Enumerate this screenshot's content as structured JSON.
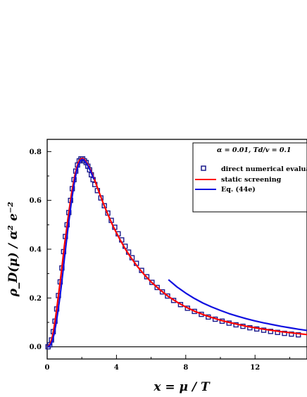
{
  "chart_data": {
    "type": "line",
    "xlabel": "x = μ / T",
    "ylabel": "ρ_D(μ) / α² e⁻²",
    "xlim": [
      0,
      15
    ],
    "ylim": [
      -0.05,
      0.85
    ],
    "x_ticks": [
      "0",
      "4",
      "8",
      "12"
    ],
    "y_ticks": [
      "0.0",
      "0.2",
      "0.4",
      "0.6",
      "0.8"
    ],
    "grid": false,
    "legend_position": "top-right",
    "legend_params": "α = 0.01,    Td/v = 0.1",
    "series": [
      {
        "name": "direct numerical evaluation",
        "style": "open-square-markers",
        "color": "#1a1a8c",
        "x": [
          0.05,
          0.15,
          0.25,
          0.35,
          0.45,
          0.55,
          0.65,
          0.75,
          0.85,
          0.95,
          1.05,
          1.15,
          1.25,
          1.35,
          1.45,
          1.55,
          1.65,
          1.75,
          1.85,
          1.95,
          2.05,
          2.15,
          2.25,
          2.35,
          2.45,
          2.55,
          2.65,
          2.75,
          2.9,
          3.1,
          3.3,
          3.5,
          3.7,
          3.9,
          4.1,
          4.3,
          4.5,
          4.7,
          4.9,
          5.15,
          5.45,
          5.75,
          6.05,
          6.35,
          6.65,
          6.95,
          7.3,
          7.7,
          8.1,
          8.5,
          8.9,
          9.3,
          9.7,
          10.1,
          10.5,
          10.9,
          11.3,
          11.7,
          12.1,
          12.5,
          12.9,
          13.3,
          13.7,
          14.1,
          14.5
        ],
        "y": [
          0.0,
          0.008,
          0.028,
          0.062,
          0.105,
          0.155,
          0.21,
          0.266,
          0.323,
          0.39,
          0.452,
          0.5,
          0.55,
          0.6,
          0.648,
          0.685,
          0.72,
          0.745,
          0.762,
          0.77,
          0.77,
          0.762,
          0.755,
          0.74,
          0.725,
          0.705,
          0.685,
          0.665,
          0.64,
          0.61,
          0.578,
          0.548,
          0.518,
          0.49,
          0.463,
          0.438,
          0.412,
          0.388,
          0.365,
          0.342,
          0.313,
          0.287,
          0.264,
          0.243,
          0.225,
          0.208,
          0.19,
          0.173,
          0.158,
          0.145,
          0.133,
          0.122,
          0.113,
          0.105,
          0.097,
          0.09,
          0.084,
          0.078,
          0.073,
          0.068,
          0.063,
          0.059,
          0.055,
          0.052,
          0.049
        ]
      },
      {
        "name": "static screening",
        "style": "line",
        "color": "#ff0000",
        "x": [
          0.0,
          0.1,
          0.2,
          0.3,
          0.4,
          0.5,
          0.6,
          0.7,
          0.8,
          0.9,
          1.0,
          1.1,
          1.2,
          1.3,
          1.4,
          1.5,
          1.6,
          1.7,
          1.8,
          1.9,
          2.0,
          2.1,
          2.2,
          2.3,
          2.4,
          2.5,
          2.6,
          2.7,
          2.8,
          3.0,
          3.2,
          3.4,
          3.6,
          3.8,
          4.0,
          4.2,
          4.5,
          4.8,
          5.2,
          5.6,
          6.0,
          6.5,
          7.0,
          7.5,
          8.0,
          8.5,
          9.0,
          9.5,
          10.0,
          10.5,
          11.0,
          11.5,
          12.0,
          12.5,
          13.0,
          13.5,
          14.0,
          14.5,
          15.0
        ],
        "y": [
          0.0,
          0.003,
          0.016,
          0.042,
          0.08,
          0.128,
          0.182,
          0.238,
          0.295,
          0.355,
          0.418,
          0.47,
          0.525,
          0.575,
          0.625,
          0.665,
          0.703,
          0.732,
          0.755,
          0.767,
          0.772,
          0.77,
          0.762,
          0.752,
          0.74,
          0.725,
          0.708,
          0.69,
          0.672,
          0.633,
          0.595,
          0.56,
          0.527,
          0.495,
          0.467,
          0.44,
          0.402,
          0.369,
          0.33,
          0.296,
          0.266,
          0.234,
          0.206,
          0.183,
          0.163,
          0.146,
          0.132,
          0.12,
          0.109,
          0.1,
          0.092,
          0.084,
          0.078,
          0.072,
          0.067,
          0.062,
          0.058,
          0.054,
          0.05
        ]
      },
      {
        "name": "Eq. (44e)",
        "style": "line",
        "color": "#1010e0",
        "segments": [
          {
            "x": [
              0.0,
              0.1,
              0.2,
              0.3,
              0.4,
              0.5,
              0.6,
              0.7,
              0.8,
              0.9,
              1.0,
              1.1,
              1.2,
              1.3,
              1.4,
              1.5,
              1.6,
              1.7,
              1.8,
              1.9,
              2.0,
              2.1,
              2.2,
              2.3,
              2.4,
              2.5,
              2.6,
              2.7
            ],
            "y": [
              0.0,
              0.0,
              0.008,
              0.025,
              0.052,
              0.09,
              0.135,
              0.185,
              0.24,
              0.3,
              0.365,
              0.425,
              0.485,
              0.54,
              0.595,
              0.642,
              0.685,
              0.72,
              0.745,
              0.76,
              0.768,
              0.766,
              0.758,
              0.748,
              0.735,
              0.72,
              0.703,
              0.686
            ]
          },
          {
            "x": [
              7.0,
              7.5,
              8.0,
              8.5,
              9.0,
              9.5,
              10.0,
              10.5,
              11.0,
              11.5,
              12.0,
              12.5,
              13.0,
              13.5,
              14.0,
              14.5,
              15.0
            ],
            "y": [
              0.275,
              0.245,
              0.22,
              0.198,
              0.179,
              0.163,
              0.149,
              0.136,
              0.125,
              0.115,
              0.106,
              0.098,
              0.091,
              0.084,
              0.078,
              0.072,
              0.067
            ]
          }
        ]
      },
      {
        "name": "zero-line",
        "style": "line",
        "color": "#000000",
        "x": [
          0,
          15
        ],
        "y": [
          0,
          0
        ]
      }
    ]
  }
}
